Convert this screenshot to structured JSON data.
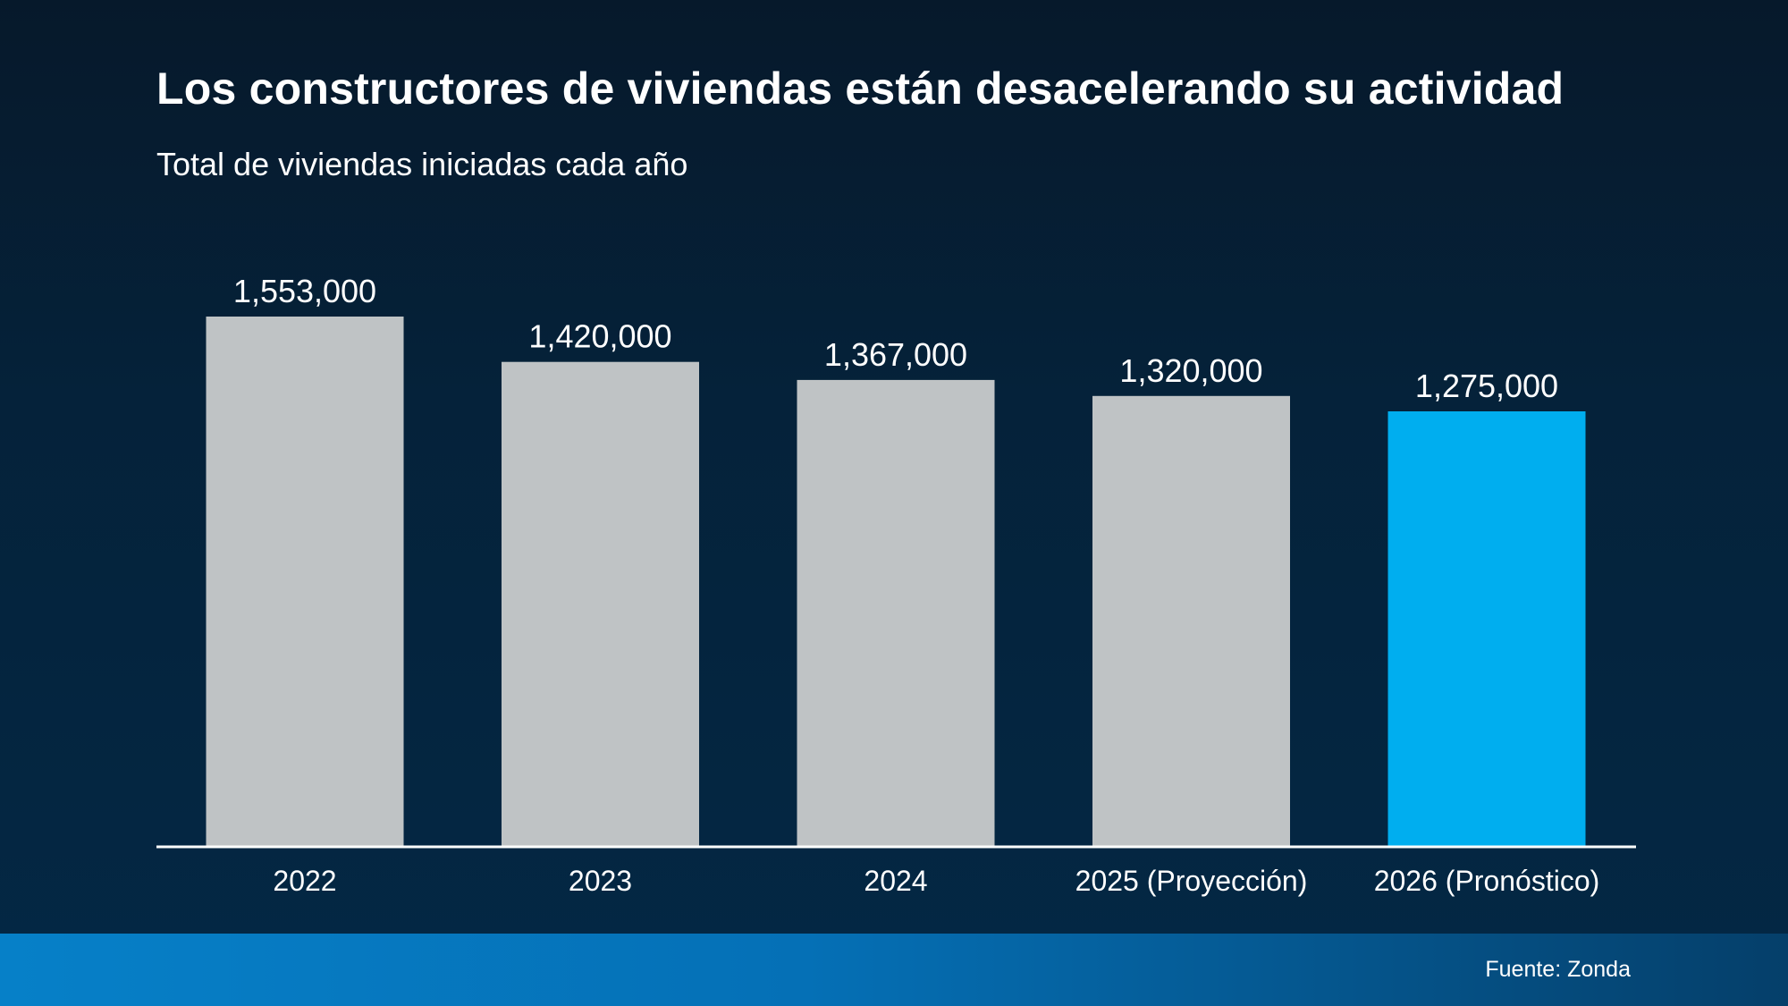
{
  "header": {
    "title": "Los constructores de viviendas están desacelerando su actividad",
    "subtitle": "Total de viviendas iniciadas cada año"
  },
  "footer": {
    "source": "Fuente: Zonda"
  },
  "colors": {
    "bar_default": "#bfc3c5",
    "bar_highlight": "#00aeef",
    "axis": "#ffffff",
    "text": "#ffffff"
  },
  "chart_data": {
    "type": "bar",
    "title": "Los constructores de viviendas están desacelerando su actividad",
    "subtitle": "Total de viviendas iniciadas cada año",
    "xlabel": "",
    "ylabel": "",
    "categories": [
      "2022",
      "2023",
      "2024",
      "2025 (Proyección)",
      "2026 (Pronóstico)"
    ],
    "values": [
      1553000,
      1420000,
      1367000,
      1320000,
      1275000
    ],
    "value_labels": [
      "1,553,000",
      "1,420,000",
      "1,367,000",
      "1,320,000",
      "1,275,000"
    ],
    "highlighted_index": 4,
    "ylim": [
      0,
      1553000
    ],
    "grid": false,
    "legend": "none"
  }
}
